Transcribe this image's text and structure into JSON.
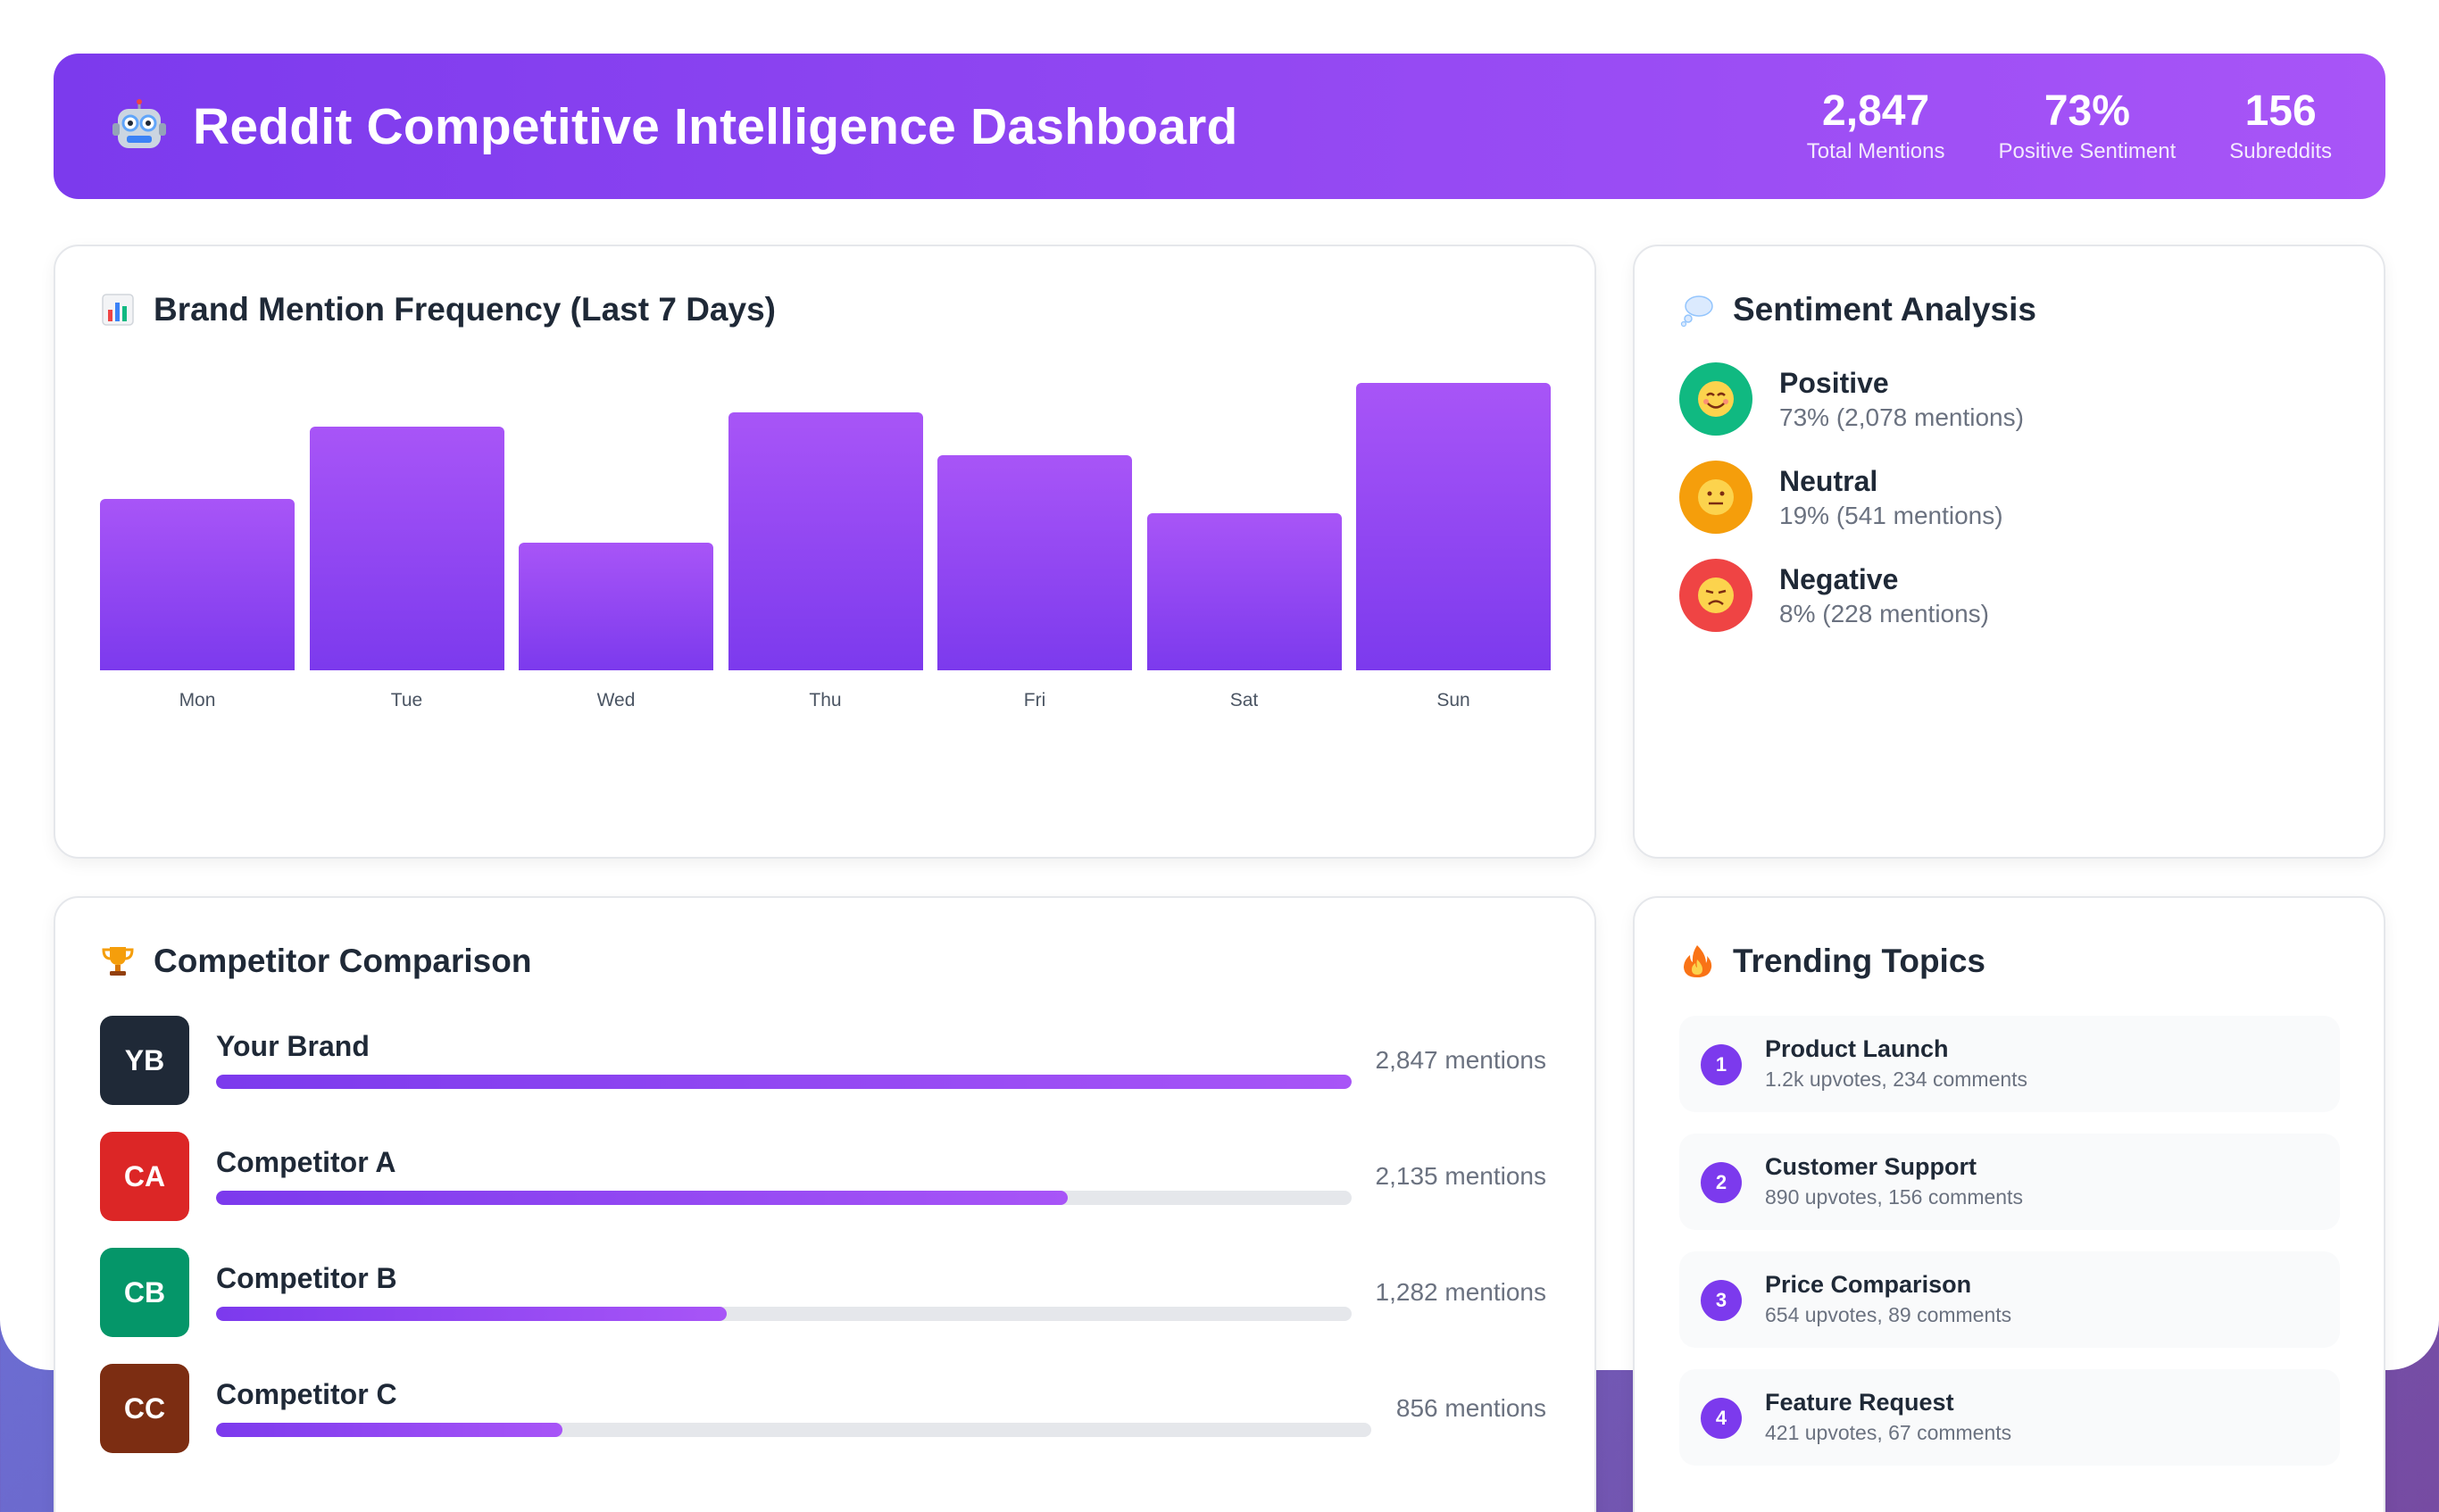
{
  "header": {
    "title": "Reddit Competitive Intelligence Dashboard",
    "stats": [
      {
        "value": "2,847",
        "label": "Total Mentions"
      },
      {
        "value": "73%",
        "label": "Positive Sentiment"
      },
      {
        "value": "156",
        "label": "Subreddits"
      }
    ]
  },
  "mentions_card": {
    "title": "Brand Mention Frequency (Last 7 Days)",
    "icon": "bar-chart-icon"
  },
  "chart_data": {
    "type": "bar",
    "categories": [
      "Mon",
      "Tue",
      "Wed",
      "Thu",
      "Fri",
      "Sat",
      "Sun"
    ],
    "values": [
      59,
      84,
      44,
      89,
      74,
      54,
      99
    ],
    "ylim": [
      0,
      100
    ],
    "grid": false,
    "title": "Brand Mention Frequency (Last 7 Days)",
    "bar_color": "#8b5cf6"
  },
  "sentiment": {
    "title": "Sentiment Analysis",
    "icon": "thought-bubble-icon",
    "items": [
      {
        "name": "Positive",
        "detail": "73% (2,078 mentions)",
        "color": "#10b981",
        "icon": "smiling-face-icon"
      },
      {
        "name": "Neutral",
        "detail": "19% (541 mentions)",
        "color": "#f59e0b",
        "icon": "neutral-face-icon"
      },
      {
        "name": "Negative",
        "detail": "8% (228 mentions)",
        "color": "#ef4444",
        "icon": "disappointed-face-icon"
      }
    ]
  },
  "competitors": {
    "title": "Competitor Comparison",
    "icon": "trophy-icon",
    "items": [
      {
        "initials": "YB",
        "name": "Your Brand",
        "count": "2,847 mentions",
        "share": 1.0,
        "color": "#1f2937"
      },
      {
        "initials": "CA",
        "name": "Competitor A",
        "count": "2,135 mentions",
        "share": 0.75,
        "color": "#dc2626"
      },
      {
        "initials": "CB",
        "name": "Competitor B",
        "count": "1,282 mentions",
        "share": 0.45,
        "color": "#059669"
      },
      {
        "initials": "CC",
        "name": "Competitor C",
        "count": "856 mentions",
        "share": 0.3,
        "color": "#7c2d12"
      }
    ]
  },
  "trending": {
    "title": "Trending Topics",
    "icon": "fire-icon",
    "items": [
      {
        "rank": "1",
        "name": "Product Launch",
        "meta": "1.2k upvotes, 234 comments"
      },
      {
        "rank": "2",
        "name": "Customer Support",
        "meta": "890 upvotes, 156 comments"
      },
      {
        "rank": "3",
        "name": "Price Comparison",
        "meta": "654 upvotes, 89 comments"
      },
      {
        "rank": "4",
        "name": "Feature Request",
        "meta": "421 upvotes, 67 comments"
      }
    ]
  }
}
